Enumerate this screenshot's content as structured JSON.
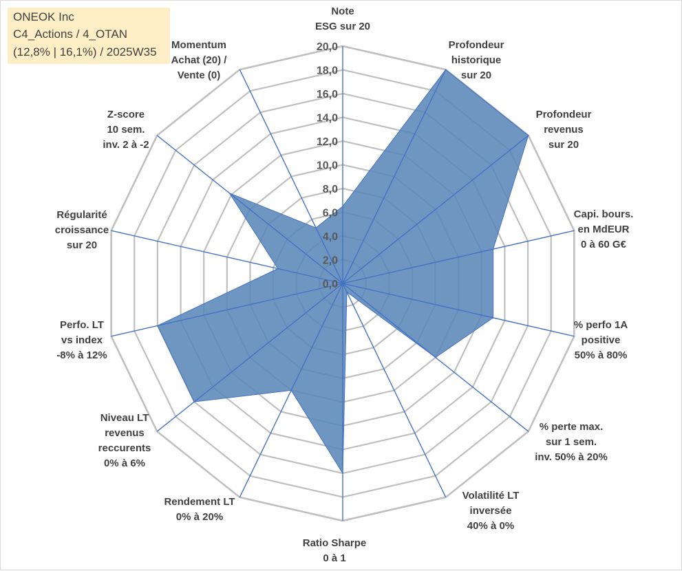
{
  "title": {
    "line1": "ONEOK Inc",
    "line2": "C4_Actions / 4_OTAN",
    "line3": "(12,8% | 16,1%) / 2025W35"
  },
  "colors": {
    "fill": "#5b86b8",
    "series_line": "#4472c4",
    "grid": "#bfbfbf",
    "spoke": "#4472c4",
    "title_bg": "#fdeec6"
  },
  "chart_data": {
    "type": "radar",
    "title": "",
    "rmin": 0,
    "rmax": 20,
    "tick_step": 2,
    "tick_labels": [
      "0,0",
      "2,0",
      "4,0",
      "6,0",
      "8,0",
      "10,0",
      "12,0",
      "14,0",
      "16,0",
      "18,0",
      "20,0"
    ],
    "grid": true,
    "legend": "none",
    "axes": [
      {
        "lines": [
          "Note",
          "ESG sur 20"
        ]
      },
      {
        "lines": [
          "Profondeur",
          "historique",
          "sur 20"
        ]
      },
      {
        "lines": [
          "Profondeur",
          "revenus",
          "sur 20"
        ]
      },
      {
        "lines": [
          "Capi. bours.",
          "en MdEUR",
          "0 à 60 G€"
        ]
      },
      {
        "lines": [
          "% perfo 1A",
          "positive",
          "50% à 80%"
        ]
      },
      {
        "lines": [
          "% perte max.",
          "sur 1 sem.",
          "inv. 50% à 20%"
        ]
      },
      {
        "lines": [
          "Volatilité LT",
          "inversée",
          "40% à 0%"
        ]
      },
      {
        "lines": [
          "Ratio Sharpe",
          "0 à 1"
        ]
      },
      {
        "lines": [
          "Rendement LT",
          "0% à 20%"
        ]
      },
      {
        "lines": [
          "Niveau LT",
          "revenus",
          "reccurents",
          "0% à 6%"
        ]
      },
      {
        "lines": [
          "Perfo. LT",
          "vs index",
          "-8% à 12%"
        ]
      },
      {
        "lines": [
          "Régularité",
          "croissance",
          "sur 20"
        ]
      },
      {
        "lines": [
          "Z-score",
          "10 sem.",
          "inv. 2 à -2"
        ]
      },
      {
        "lines": [
          "Momentum",
          "Achat (20) /",
          "Vente (0)"
        ]
      }
    ],
    "series": [
      {
        "values": [
          6.5,
          20.0,
          20.0,
          13.0,
          13.0,
          10.0,
          0.8,
          16.0,
          10.0,
          16.0,
          16.0,
          5.6,
          12.2,
          5.2
        ]
      }
    ]
  }
}
